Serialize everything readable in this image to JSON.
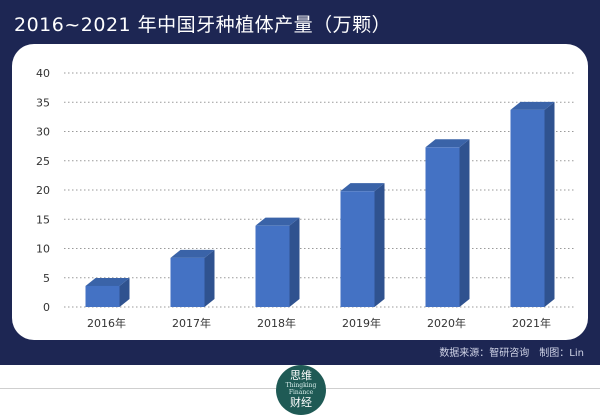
{
  "header": {
    "title": "2016~2021 年中国牙种植体产量（万颗）"
  },
  "source_text": "数据来源：智研咨询　制图：Lin",
  "logo": {
    "line1": "思维",
    "line2": "Thingking",
    "line3": "Finance",
    "line4": "财经"
  },
  "colors": {
    "frame": "#1d2653",
    "bar_front": "#4472c4",
    "bar_side": "#2f528f",
    "bar_top": "#3a63a8",
    "logo": "#1f5a55"
  },
  "chart_data": {
    "type": "bar",
    "title": "2016~2021 年中国牙种植体产量（万颗）",
    "xlabel": "",
    "ylabel": "",
    "categories": [
      "2016年",
      "2017年",
      "2018年",
      "2019年",
      "2020年",
      "2021年"
    ],
    "values": [
      3.6,
      8.4,
      13.9,
      19.8,
      27.3,
      33.7
    ],
    "ylim": [
      0,
      40
    ],
    "yticks": [
      0,
      5,
      10,
      15,
      20,
      25,
      30,
      35,
      40
    ],
    "grid": "horizontal-dotted",
    "style": "3d-columns"
  }
}
